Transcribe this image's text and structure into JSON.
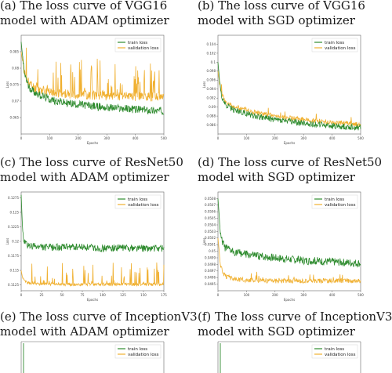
{
  "colors": {
    "train": "#2e8b2e",
    "validation": "#f0b030",
    "axis": "#666666"
  },
  "panels": [
    {
      "caption_line1": "(a) The loss curve of VGG16",
      "caption_line2": "model with ADAM optimizer",
      "legend": [
        "train loss",
        "validation loss"
      ],
      "xlabel": "Epochs",
      "ylabel": "Loss"
    },
    {
      "caption_line1": "(b) The loss curve of VGG16",
      "caption_line2": "model with SGD optimizer",
      "legend": [
        "train loss",
        "validation loss"
      ],
      "xlabel": "Epochs",
      "ylabel": "Loss"
    },
    {
      "caption_line1": "(c) The loss curve of ResNet50",
      "caption_line2": "model with ADAM optimizer",
      "legend": [
        "train loss",
        "validation loss"
      ],
      "xlabel": "Epochs",
      "ylabel": "Loss"
    },
    {
      "caption_line1": "(d) The loss curve of ResNet50",
      "caption_line2": "model with SGD optimizer",
      "legend": [
        "train loss",
        "validation loss"
      ],
      "xlabel": "Epochs",
      "ylabel": "Loss"
    },
    {
      "caption_line1": "(e) The loss curve of InceptionV3",
      "caption_line2": "model with ADAM optimizer",
      "legend": [
        "train loss",
        "validation loss"
      ]
    },
    {
      "caption_line1": "(f) The loss curve of InceptionV3",
      "caption_line2": "model with SGD optimizer",
      "legend": [
        "train loss",
        "validation loss"
      ]
    }
  ],
  "chart_data": [
    {
      "type": "line",
      "panel": "a",
      "xlim": [
        0,
        500
      ],
      "x_ticks": [
        0,
        100,
        200,
        300,
        400,
        500
      ],
      "ylim": [
        0.06,
        0.09
      ],
      "y_ticks": [
        0.065,
        0.07,
        0.075,
        0.08,
        0.085
      ],
      "series": [
        {
          "name": "train loss",
          "x": [
            0,
            10,
            25,
            50,
            100,
            150,
            200,
            250,
            300,
            350,
            400,
            450,
            500
          ],
          "values": [
            0.088,
            0.079,
            0.0745,
            0.0725,
            0.0705,
            0.0695,
            0.069,
            0.0685,
            0.068,
            0.0678,
            0.0675,
            0.0672,
            0.067
          ]
        },
        {
          "name": "validation loss",
          "x": [
            0,
            10,
            25,
            50,
            100,
            150,
            200,
            250,
            300,
            350,
            400,
            450,
            500
          ],
          "values": [
            0.085,
            0.079,
            0.0755,
            0.0738,
            0.0728,
            0.0722,
            0.072,
            0.0718,
            0.0716,
            0.0715,
            0.0714,
            0.0713,
            0.0712
          ]
        }
      ]
    },
    {
      "type": "line",
      "panel": "b",
      "xlim": [
        0,
        500
      ],
      "x_ticks": [
        0,
        100,
        200,
        300,
        400,
        500
      ],
      "ylim": [
        0.084,
        0.106
      ],
      "y_ticks": [
        0.086,
        0.088,
        0.09,
        0.092,
        0.094,
        0.096,
        0.098,
        0.1,
        0.102,
        0.104
      ],
      "series": [
        {
          "name": "train loss",
          "x": [
            0,
            10,
            25,
            50,
            100,
            150,
            200,
            250,
            300,
            350,
            400,
            450,
            500
          ],
          "values": [
            0.1,
            0.093,
            0.0905,
            0.0895,
            0.0885,
            0.0878,
            0.0872,
            0.0868,
            0.0864,
            0.0861,
            0.0858,
            0.0856,
            0.0855
          ]
        },
        {
          "name": "validation loss",
          "x": [
            0,
            10,
            25,
            50,
            100,
            150,
            200,
            250,
            300,
            350,
            400,
            450,
            500
          ],
          "values": [
            0.098,
            0.0935,
            0.0912,
            0.0902,
            0.0893,
            0.0886,
            0.088,
            0.0876,
            0.0872,
            0.0869,
            0.0866,
            0.0864,
            0.0862
          ]
        }
      ]
    },
    {
      "type": "line",
      "panel": "c",
      "xlim": [
        0,
        175
      ],
      "x_ticks": [
        0,
        25,
        50,
        75,
        100,
        125,
        150,
        175
      ],
      "ylim": [
        0.1115,
        0.1285
      ],
      "y_ticks": [
        0.1125,
        0.115,
        0.1175,
        0.12,
        0.1225,
        0.125,
        0.1275
      ],
      "series": [
        {
          "name": "train loss",
          "x": [
            0,
            2,
            5,
            10,
            25,
            50,
            75,
            100,
            125,
            150,
            175
          ],
          "values": [
            0.128,
            0.121,
            0.1195,
            0.1192,
            0.119,
            0.119,
            0.119,
            0.1188,
            0.1189,
            0.1188,
            0.1188
          ]
        },
        {
          "name": "validation loss",
          "x": [
            0,
            2,
            5,
            10,
            25,
            50,
            75,
            100,
            125,
            150,
            175
          ],
          "values": [
            0.115,
            0.1135,
            0.113,
            0.1128,
            0.1127,
            0.1126,
            0.1126,
            0.1126,
            0.1126,
            0.1126,
            0.1126
          ]
        }
      ]
    },
    {
      "type": "line",
      "panel": "d",
      "xlim": [
        0,
        500
      ],
      "x_ticks": [
        0,
        100,
        200,
        300,
        400,
        500
      ],
      "ylim": [
        0.0494,
        0.0509
      ],
      "y_ticks": [
        0.0495,
        0.0496,
        0.0497,
        0.0498,
        0.0499,
        0.05,
        0.0501,
        0.0502,
        0.0503,
        0.0504,
        0.0505,
        0.0506,
        0.0507,
        0.0508
      ],
      "series": [
        {
          "name": "train loss",
          "x": [
            0,
            10,
            25,
            50,
            100,
            150,
            200,
            250,
            300,
            350,
            400,
            450,
            500
          ],
          "values": [
            0.0508,
            0.0502,
            0.05005,
            0.05,
            0.04995,
            0.04992,
            0.0499,
            0.04988,
            0.04986,
            0.04985,
            0.04984,
            0.04983,
            0.04982
          ]
        },
        {
          "name": "validation loss",
          "x": [
            0,
            10,
            25,
            50,
            100,
            150,
            200,
            250,
            300,
            350,
            400,
            450,
            500
          ],
          "values": [
            0.0502,
            0.04975,
            0.04962,
            0.04958,
            0.04956,
            0.04955,
            0.04955,
            0.04955,
            0.04955,
            0.04955,
            0.04955,
            0.04955,
            0.04955
          ]
        }
      ]
    },
    {
      "type": "line",
      "panel": "e",
      "series": [
        {
          "name": "train loss",
          "x": [],
          "values": []
        },
        {
          "name": "validation loss",
          "x": [],
          "values": []
        }
      ]
    },
    {
      "type": "line",
      "panel": "f",
      "series": [
        {
          "name": "train loss",
          "x": [],
          "values": []
        },
        {
          "name": "validation loss",
          "x": [],
          "values": []
        }
      ]
    }
  ]
}
